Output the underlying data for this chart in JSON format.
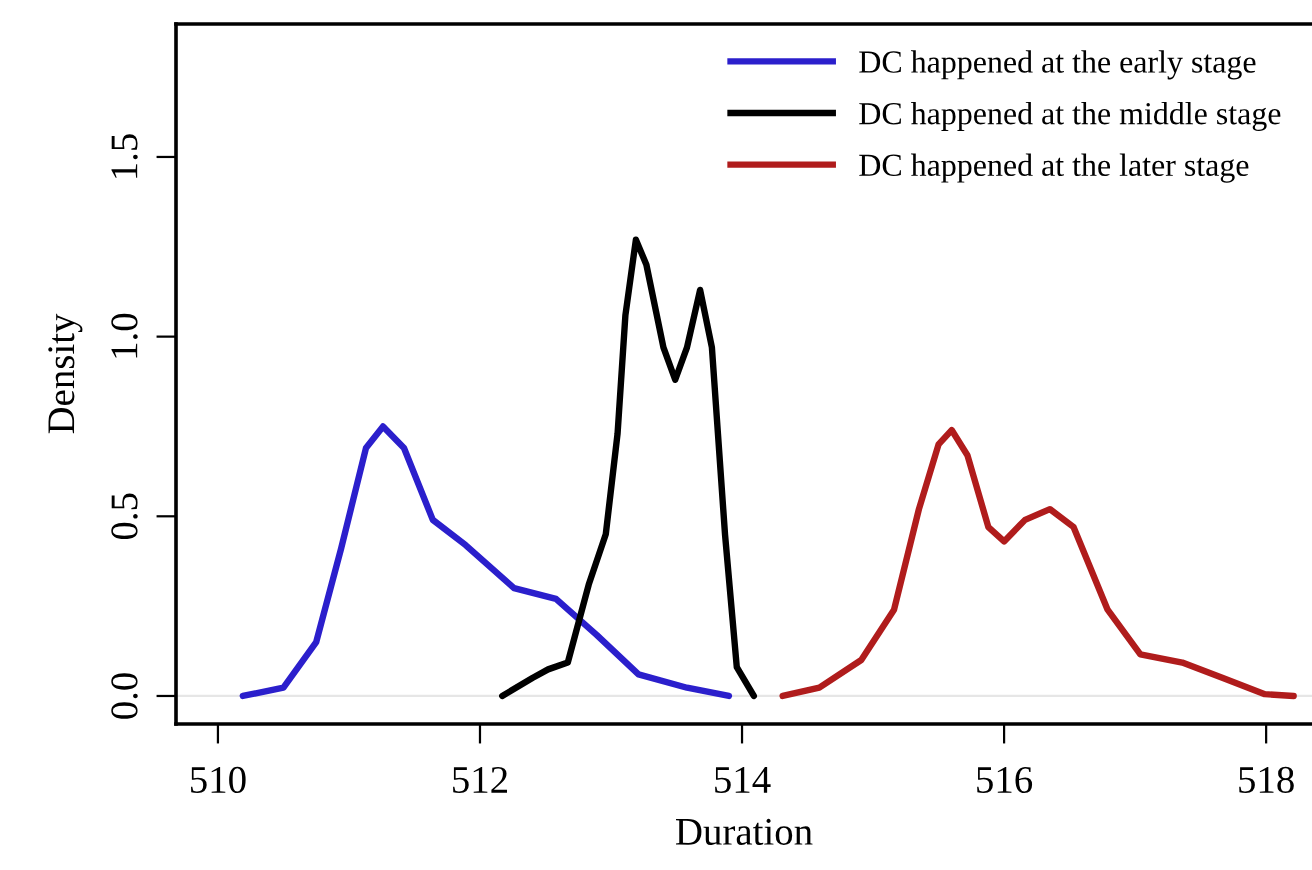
{
  "chart_data": {
    "type": "line",
    "xlabel": "Duration",
    "ylabel": "Density",
    "xlim": [
      509.68,
      518.35
    ],
    "ylim": [
      -0.078,
      1.87
    ],
    "xticks": [
      510,
      512,
      514,
      516,
      518
    ],
    "yticks": [
      {
        "value": 0,
        "label": "0.0"
      },
      0.5,
      {
        "value": 1,
        "label": "1.0"
      },
      1.5
    ],
    "grid": false,
    "legend": "top right",
    "marker": "none",
    "line_style": "solid",
    "ref_lines": [
      {
        "axis": "y",
        "value": 0,
        "label": null,
        "color": "#e6e6e6"
      }
    ],
    "series": [
      {
        "name": "DC happened at the early stage",
        "color": "#2b1fcc",
        "x": [
          510.19,
          510.5,
          510.75,
          510.94,
          511.13,
          511.26,
          511.42,
          511.64,
          511.89,
          512.26,
          512.58,
          512.89,
          513.21,
          513.58,
          513.9
        ],
        "values": [
          0,
          0.023,
          0.15,
          0.41,
          0.69,
          0.75,
          0.69,
          0.49,
          0.42,
          0.3,
          0.27,
          0.17,
          0.06,
          0.023,
          0
        ]
      },
      {
        "name": "DC happened at the middle stage",
        "color": "#000000",
        "x": [
          512.17,
          512.4,
          512.52,
          512.67,
          512.83,
          512.96,
          513.05,
          513.11,
          513.19,
          513.27,
          513.4,
          513.49,
          513.58,
          513.68,
          513.77,
          513.87,
          513.96,
          514.09
        ],
        "values": [
          0,
          0.05,
          0.074,
          0.093,
          0.31,
          0.45,
          0.73,
          1.06,
          1.27,
          1.2,
          0.97,
          0.88,
          0.97,
          1.13,
          0.97,
          0.45,
          0.08,
          0
        ]
      },
      {
        "name": "DC happened at the later stage",
        "color": "#b01c1c",
        "x": [
          514.31,
          514.59,
          514.91,
          515.16,
          515.35,
          515.5,
          515.6,
          515.72,
          515.88,
          516.0,
          516.16,
          516.35,
          516.53,
          516.79,
          517.04,
          517.36,
          517.67,
          517.99,
          518.21
        ],
        "values": [
          0,
          0.023,
          0.1,
          0.24,
          0.52,
          0.7,
          0.74,
          0.67,
          0.47,
          0.43,
          0.49,
          0.52,
          0.47,
          0.24,
          0.116,
          0.093,
          0.05,
          0.005,
          0
        ]
      }
    ]
  }
}
